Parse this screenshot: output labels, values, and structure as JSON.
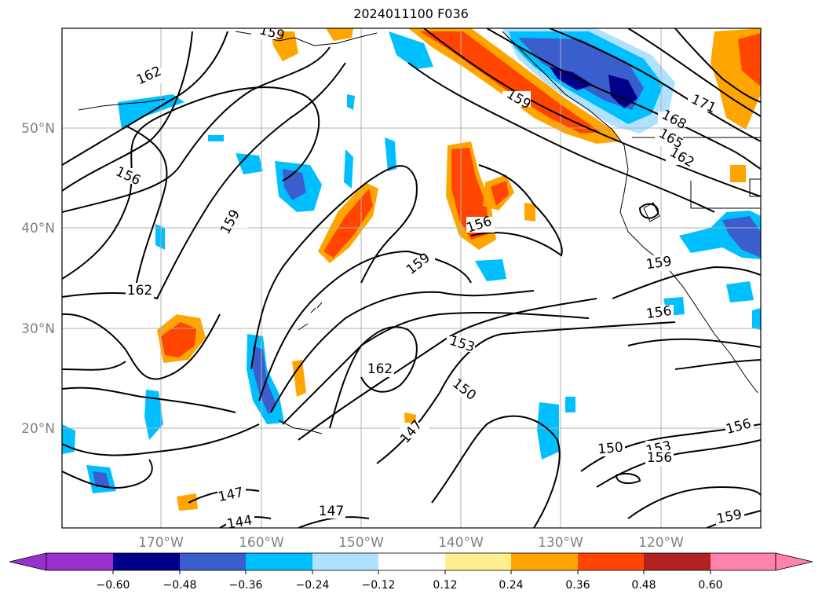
{
  "title": "2024011100 F036",
  "map": {
    "lat_labels": [
      "50°N",
      "40°N",
      "30°N",
      "20°N"
    ],
    "lon_labels": [
      "170°W",
      "160°W",
      "150°W",
      "140°W",
      "130°W",
      "120°W"
    ],
    "contour_labels": [
      "162",
      "156",
      "159",
      "162",
      "159",
      "156",
      "159",
      "153",
      "150",
      "162",
      "147",
      "147",
      "144",
      "147",
      "150",
      "153",
      "156",
      "156",
      "159",
      "159",
      "156",
      "162",
      "165",
      "168",
      "171",
      "159"
    ]
  },
  "colorbar": {
    "ticks": [
      "−0.60",
      "−0.48",
      "−0.36",
      "−0.24",
      "−0.12",
      "0.12",
      "0.24",
      "0.36",
      "0.48",
      "0.60"
    ],
    "colors": [
      "#9932cc",
      "#00008b",
      "#3a5fcd",
      "#00bfff",
      "#b0e2ff",
      "#ffffff",
      "#fff08f",
      "#ffa500",
      "#ff4500",
      "#b22222",
      "#ff82ab"
    ]
  }
}
